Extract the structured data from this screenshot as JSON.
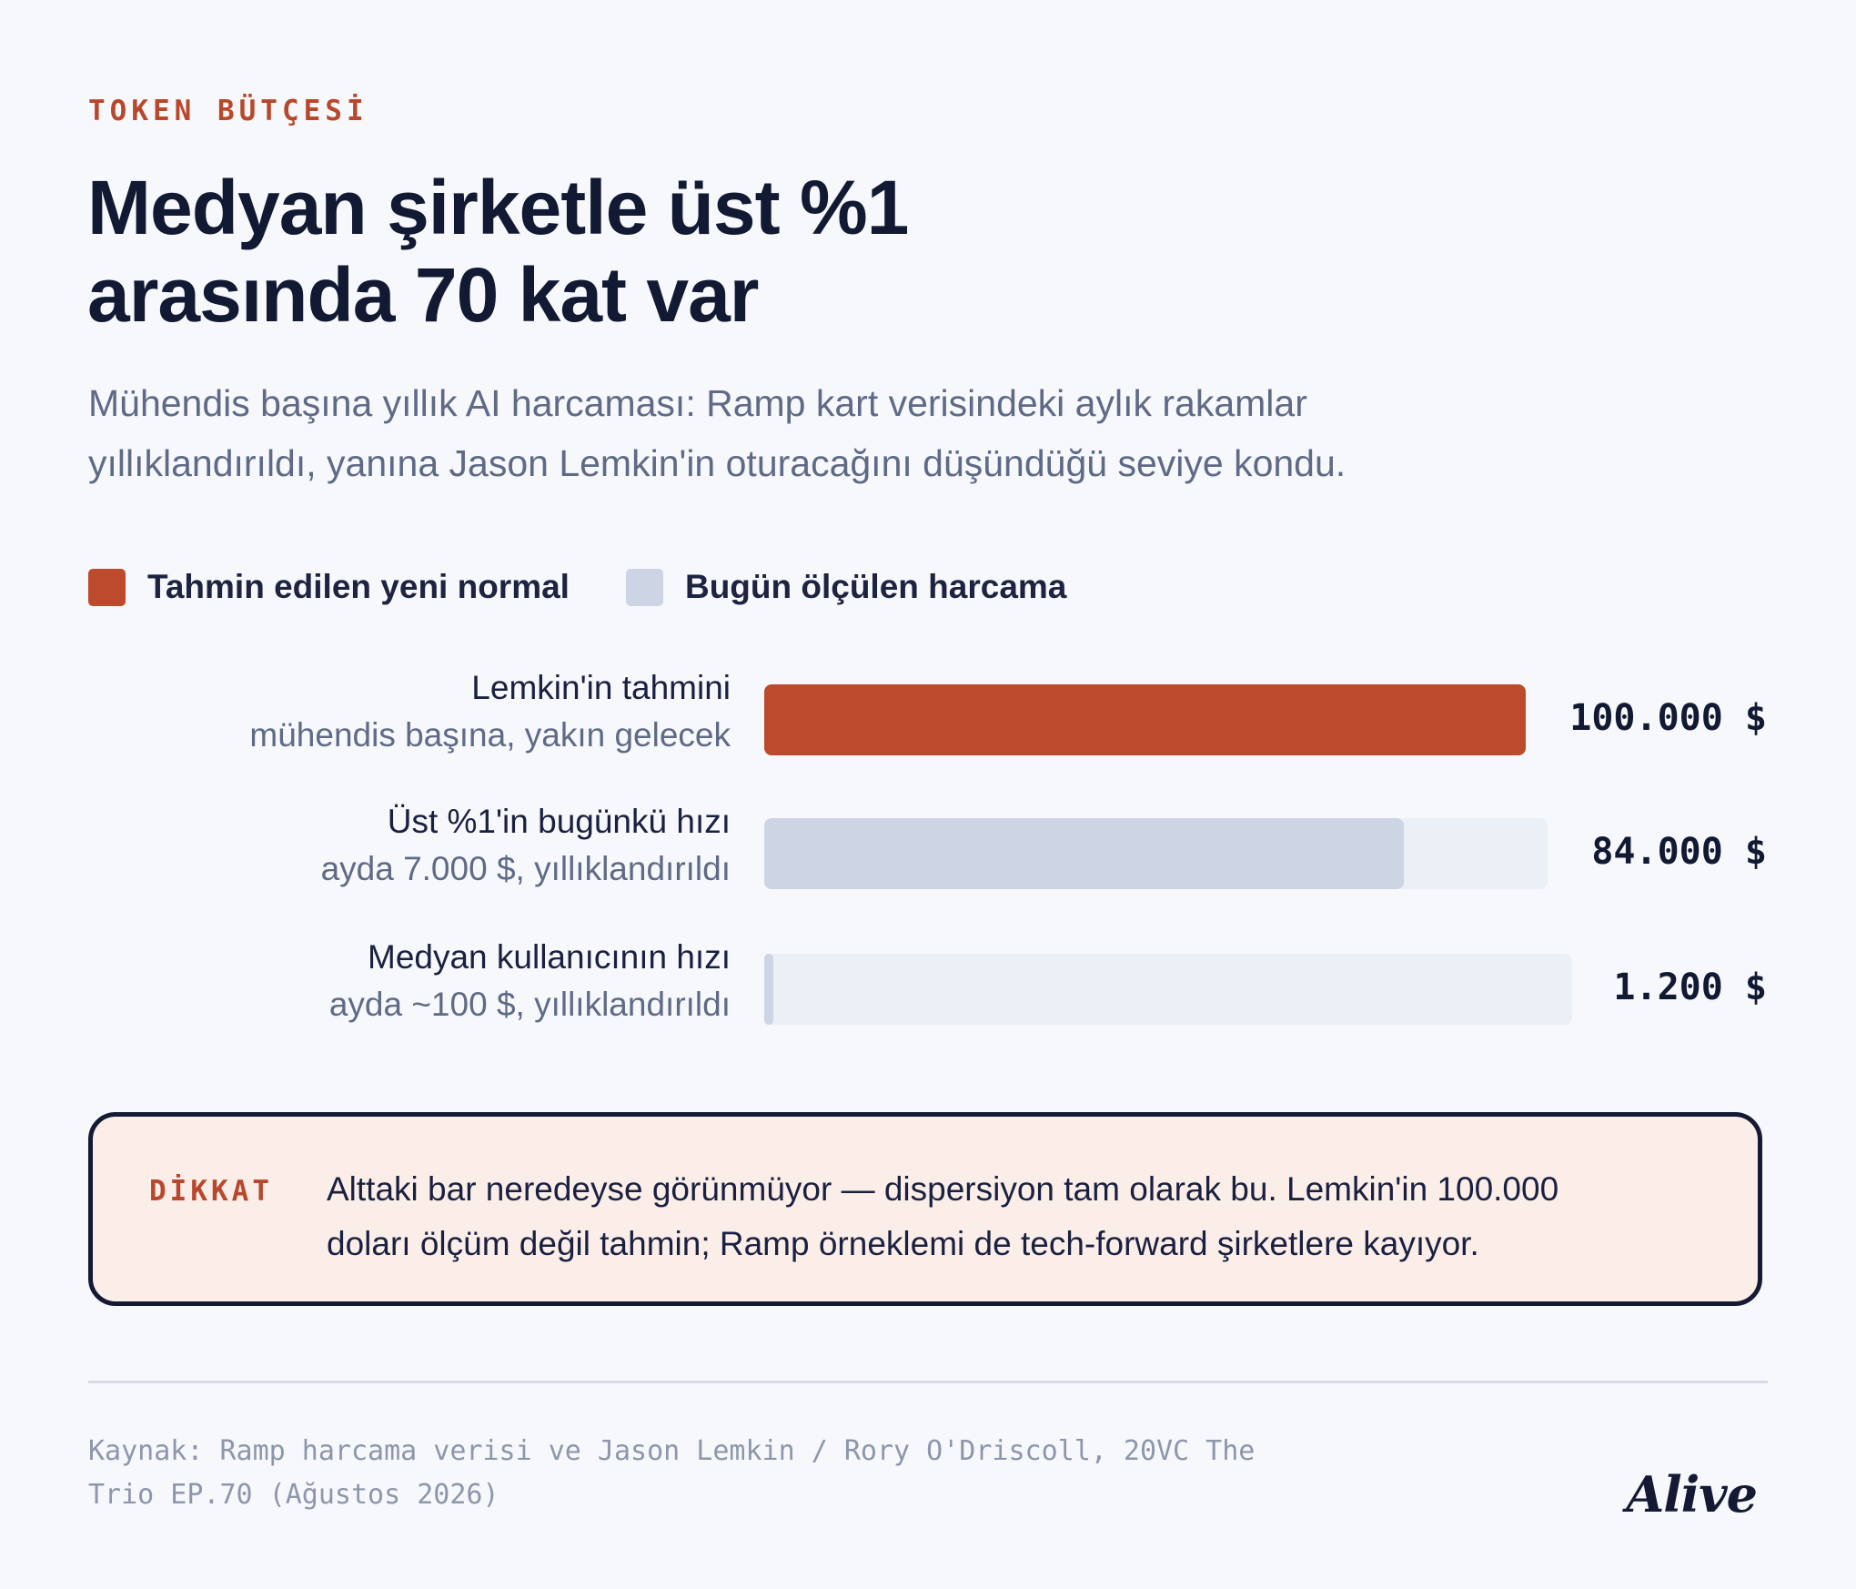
{
  "header": {
    "eyebrow": "TOKEN BÜTÇESİ",
    "title_line1": "Medyan şirketle üst %1",
    "title_line2": "arasında 70 kat var",
    "subtitle_line1": "Mühendis başına yıllık AI harcaması: Ramp kart verisindeki aylık rakamlar",
    "subtitle_line2": "yıllıklandırıldı, yanına Jason Lemkin'in oturacağını düşündüğü seviye kondu."
  },
  "legend": [
    {
      "label": "Tahmin edilen yeni normal",
      "color": "#bd4a2c"
    },
    {
      "label": "Bugün ölçülen harcama",
      "color": "#cdd4e3"
    }
  ],
  "chart_data": {
    "type": "bar",
    "orientation": "horizontal",
    "categories": [
      "Lemkin'in tahmini",
      "Üst %1'in bugünkü hızı",
      "Medyan kullanıcının hızı"
    ],
    "sublabels": [
      "mühendis başına, yakın gelecek",
      "ayda 7.000 $, yıllıklandırıldı",
      "ayda ~100 $, yıllıklandırıldı"
    ],
    "values": [
      100000,
      84000,
      1200
    ],
    "value_labels": [
      "100.000 $",
      "84.000 $",
      "1.200 $"
    ],
    "series_type": [
      "Tahmin edilen yeni normal",
      "Bugün ölçülen harcama",
      "Bugün ölçülen harcama"
    ],
    "xlim": [
      0,
      100000
    ],
    "grid": false,
    "legend_position": "top-left",
    "colors": {
      "estimate": "#bd4a2c",
      "measured": "#cdd4e3",
      "track": "#ebeff6"
    }
  },
  "note": {
    "tag": "DİKKAT",
    "line1": "Alttaki bar neredeyse görünmüyor — dispersiyon tam olarak bu. Lemkin'in 100.000",
    "line2": "doları ölçüm değil tahmin; Ramp örneklemi de tech-forward şirketlere kayıyor."
  },
  "footer": {
    "source_line1": "Kaynak: Ramp harcama verisi ve Jason Lemkin / Rory O'Driscoll, 20VC The",
    "source_line2": "Trio EP.70 (Ağustos 2026)",
    "logo": "Alive"
  }
}
